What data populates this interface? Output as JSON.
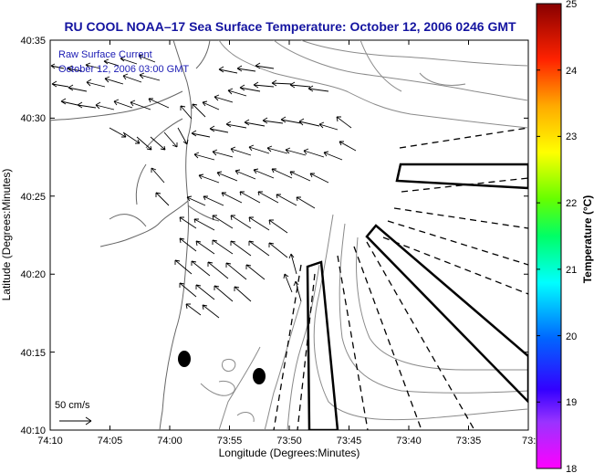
{
  "title": "RU COOL  NOAA–17  Sea Surface Temperature:  October 12, 2006 0246 GMT",
  "legend": {
    "line1": "Raw Surface Current",
    "line2": "October 12, 2006 03:00 GMT"
  },
  "scale_label": "50 cm/s",
  "axes": {
    "xlabel": "Longitude (Degrees:Minutes)",
    "ylabel": "Latitude (Degrees:Minutes)",
    "xticks": [
      "74:10",
      "74:05",
      "74:00",
      "73:55",
      "73:50",
      "73:45",
      "73:40",
      "73:35",
      "73:3"
    ],
    "yticks": [
      "40:35",
      "40:30",
      "40:25",
      "40:20",
      "40:15",
      "40:10"
    ]
  },
  "colorbar": {
    "label": "Temperature (°C)",
    "ticks": [
      "25",
      "24",
      "23",
      "22",
      "21",
      "20",
      "19",
      "18"
    ]
  },
  "colors": {
    "title": "#1414a0",
    "legend_text": "#1b1bb4",
    "contour": "#8a8a8a",
    "coast": "#666666"
  }
}
